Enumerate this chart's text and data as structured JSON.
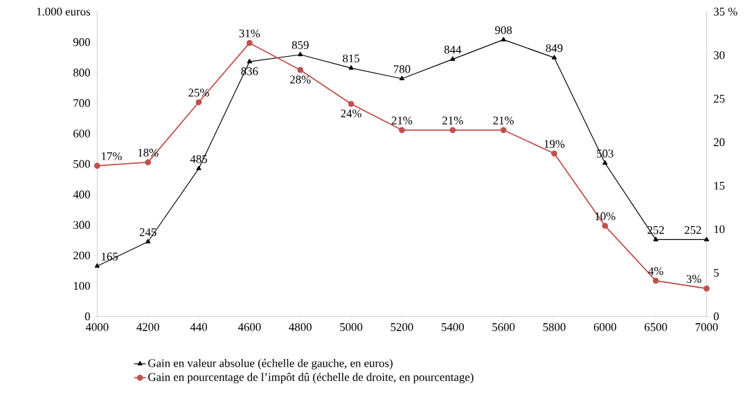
{
  "chart_data": {
    "type": "line",
    "categories": [
      "4000",
      "4200",
      "440",
      "4600",
      "4800",
      "5000",
      "5200",
      "5400",
      "5600",
      "5800",
      "6000",
      "6500",
      "7000"
    ],
    "series": [
      {
        "name": "Gain en valeur absolue (échelle de gauche, en euros)",
        "color": "#000000",
        "marker": "triangle",
        "values": [
          165,
          245,
          485,
          836,
          859,
          815,
          780,
          844,
          908,
          849,
          503,
          252,
          252
        ],
        "value_labels": [
          "165",
          "245",
          "485",
          "836",
          "859",
          "815",
          "780",
          "844",
          "908",
          "849",
          "503",
          "252",
          "252"
        ]
      },
      {
        "name": "Gain en pourcentage de l’impôt dû (échelle de droite, en pourcentage)",
        "color": "#c0504d",
        "marker": "circle",
        "axis": "y2",
        "values": [
          17.3,
          17.7,
          24.6,
          31.4,
          28.3,
          24.4,
          21.4,
          21.4,
          21.4,
          18.7,
          10.4,
          4.1,
          3.2
        ],
        "value_labels": [
          "17%",
          "18%",
          "25%",
          "31%",
          "28%",
          "24%",
          "21%",
          "21%",
          "21%",
          "19%",
          "10%",
          "4%",
          "3%"
        ]
      }
    ],
    "ylim": [
      0,
      1000
    ],
    "yticks": [
      0,
      100,
      200,
      300,
      400,
      500,
      600,
      700,
      800,
      900,
      {
        "value": 1000,
        "label": "1.000 euros"
      }
    ],
    "y2lim": [
      0,
      35
    ],
    "y2ticks": [
      0,
      5,
      10,
      15,
      20,
      25,
      30,
      {
        "value": 35,
        "label": "35  %"
      }
    ],
    "grid": false,
    "legend": "bottom"
  }
}
